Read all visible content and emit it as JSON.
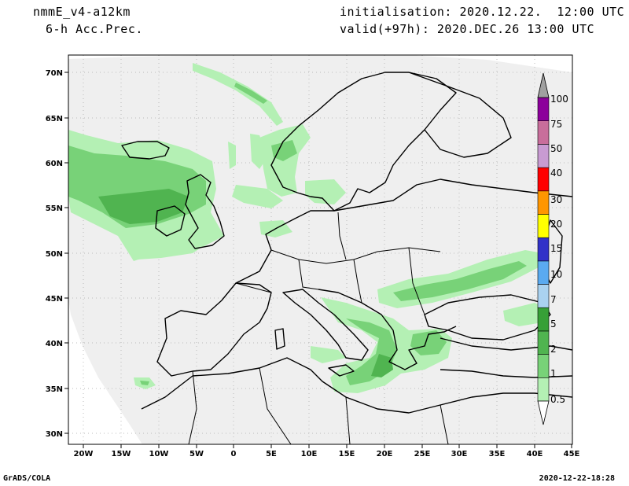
{
  "header": {
    "model": "nmmE_v4-a12km",
    "field": "6-h Acc.Prec.",
    "init_label": "initialisation:",
    "init_value": "2020.12.22.  12:00 UTC",
    "valid_label": "valid(+97h):",
    "valid_value": "2020.DEC.26 13:00 UTC"
  },
  "footer": {
    "left": "GrADS/COLA",
    "right": "2020-12-22-18:28"
  },
  "map": {
    "lon_ticks": [
      "20W",
      "15W",
      "10W",
      "5W",
      "0",
      "5E",
      "10E",
      "15E",
      "20E",
      "25E",
      "30E",
      "35E",
      "40E",
      "45E"
    ],
    "lat_ticks": [
      "70N",
      "65N",
      "60N",
      "55N",
      "50N",
      "45N",
      "40N",
      "35N",
      "30N"
    ]
  },
  "legend": {
    "levels": [
      "0.5",
      "1",
      "2",
      "5",
      "7",
      "10",
      "15",
      "20",
      "30",
      "40",
      "50",
      "75",
      "100"
    ],
    "colors": [
      "#b4f0b4",
      "#78d278",
      "#50b450",
      "#37a037",
      "#aad2f0",
      "#5aaaf0",
      "#3232c8",
      "#ffff00",
      "#ff9600",
      "#ff0000",
      "#c89bd2",
      "#c86e9b",
      "#8c009b",
      "#a0a0a0"
    ]
  },
  "colors": {
    "domain": "#efefef",
    "precip_light": "#b4f0b4",
    "precip_mid": "#78d278",
    "precip_dark": "#50b450",
    "precip_darkest": "#37a037"
  }
}
